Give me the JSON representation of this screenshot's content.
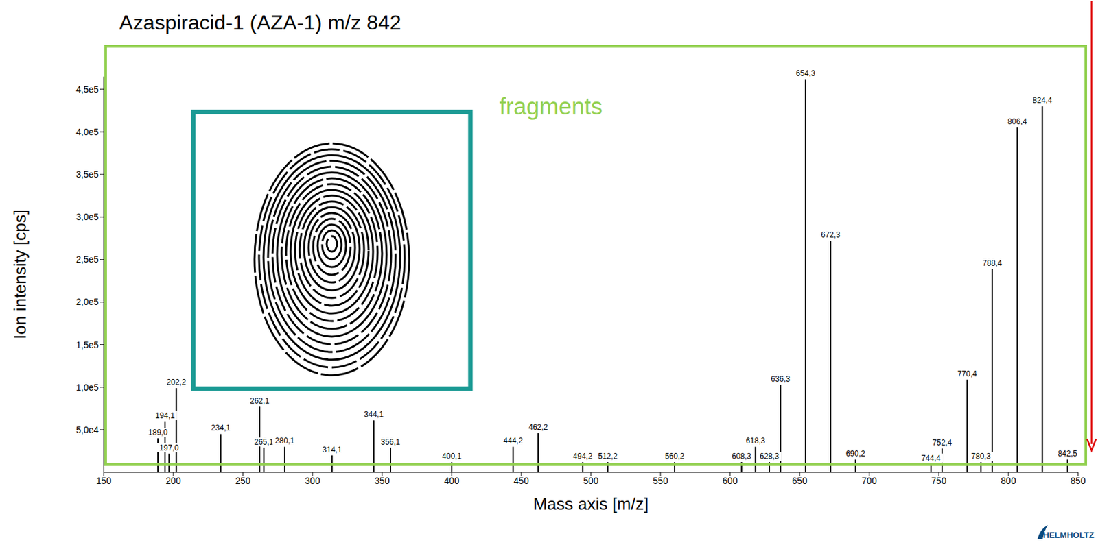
{
  "chart_data": {
    "type": "bar",
    "title": "Azaspiracid-1 (AZA-1) m/z 842",
    "x_label": "Mass axis [m/z]",
    "y_label": "Ion intensity [cps]",
    "annotations": [
      "fragments",
      "HELMHOLTZ"
    ],
    "color": "#000000",
    "grid": false,
    "xlim": [
      150,
      850
    ],
    "xticks": [
      150,
      200,
      250,
      300,
      350,
      400,
      450,
      500,
      550,
      600,
      650,
      700,
      750,
      800,
      850
    ],
    "ylim": [
      0,
      465000
    ],
    "yticks": [
      {
        "value": 50000,
        "label": "5,0e4"
      },
      {
        "value": 100000,
        "label": "1,0e5"
      },
      {
        "value": 150000,
        "label": "1,5e5"
      },
      {
        "value": 200000,
        "label": "2,0e5"
      },
      {
        "value": 250000,
        "label": "2,5e5"
      },
      {
        "value": 300000,
        "label": "3,0e5"
      },
      {
        "value": 350000,
        "label": "3,5e5"
      },
      {
        "value": 400000,
        "label": "4,0e5"
      },
      {
        "value": 450000,
        "label": "4,5e5"
      }
    ],
    "x": [
      189.0,
      194.1,
      197.0,
      202.2,
      234.1,
      262.1,
      265.1,
      280.1,
      314.1,
      344.1,
      356.1,
      400.1,
      444.2,
      462.2,
      494.2,
      512.2,
      560.2,
      608.3,
      618.3,
      628.3,
      636.3,
      654.3,
      672.3,
      690.2,
      744.4,
      752.4,
      770.4,
      780.3,
      788.4,
      806.4,
      824.4,
      842.5
    ],
    "values": [
      40000,
      60000,
      22000,
      99000,
      45000,
      77000,
      29000,
      30000,
      20000,
      61000,
      29000,
      12000,
      30000,
      46000,
      12000,
      12000,
      12000,
      12000,
      30000,
      12000,
      103000,
      462000,
      272000,
      15000,
      10000,
      28000,
      109000,
      12000,
      239000,
      405000,
      430000,
      15000
    ],
    "peak_labels": [
      "189,0",
      "194,1",
      "197,0",
      "202,2",
      "234,1",
      "262,1",
      "265,1",
      "280,1",
      "314,1",
      "344,1",
      "356,1",
      "400,1",
      "444,2",
      "462,2",
      "494,2",
      "512,2",
      "560,2",
      "608,3",
      "618,3",
      "628,3",
      "636,3",
      "654,3",
      "672,3",
      "690,2",
      "744,4",
      "752,4",
      "770,4",
      "780,3",
      "788,4",
      "806,4",
      "824,4",
      "842,5"
    ]
  }
}
